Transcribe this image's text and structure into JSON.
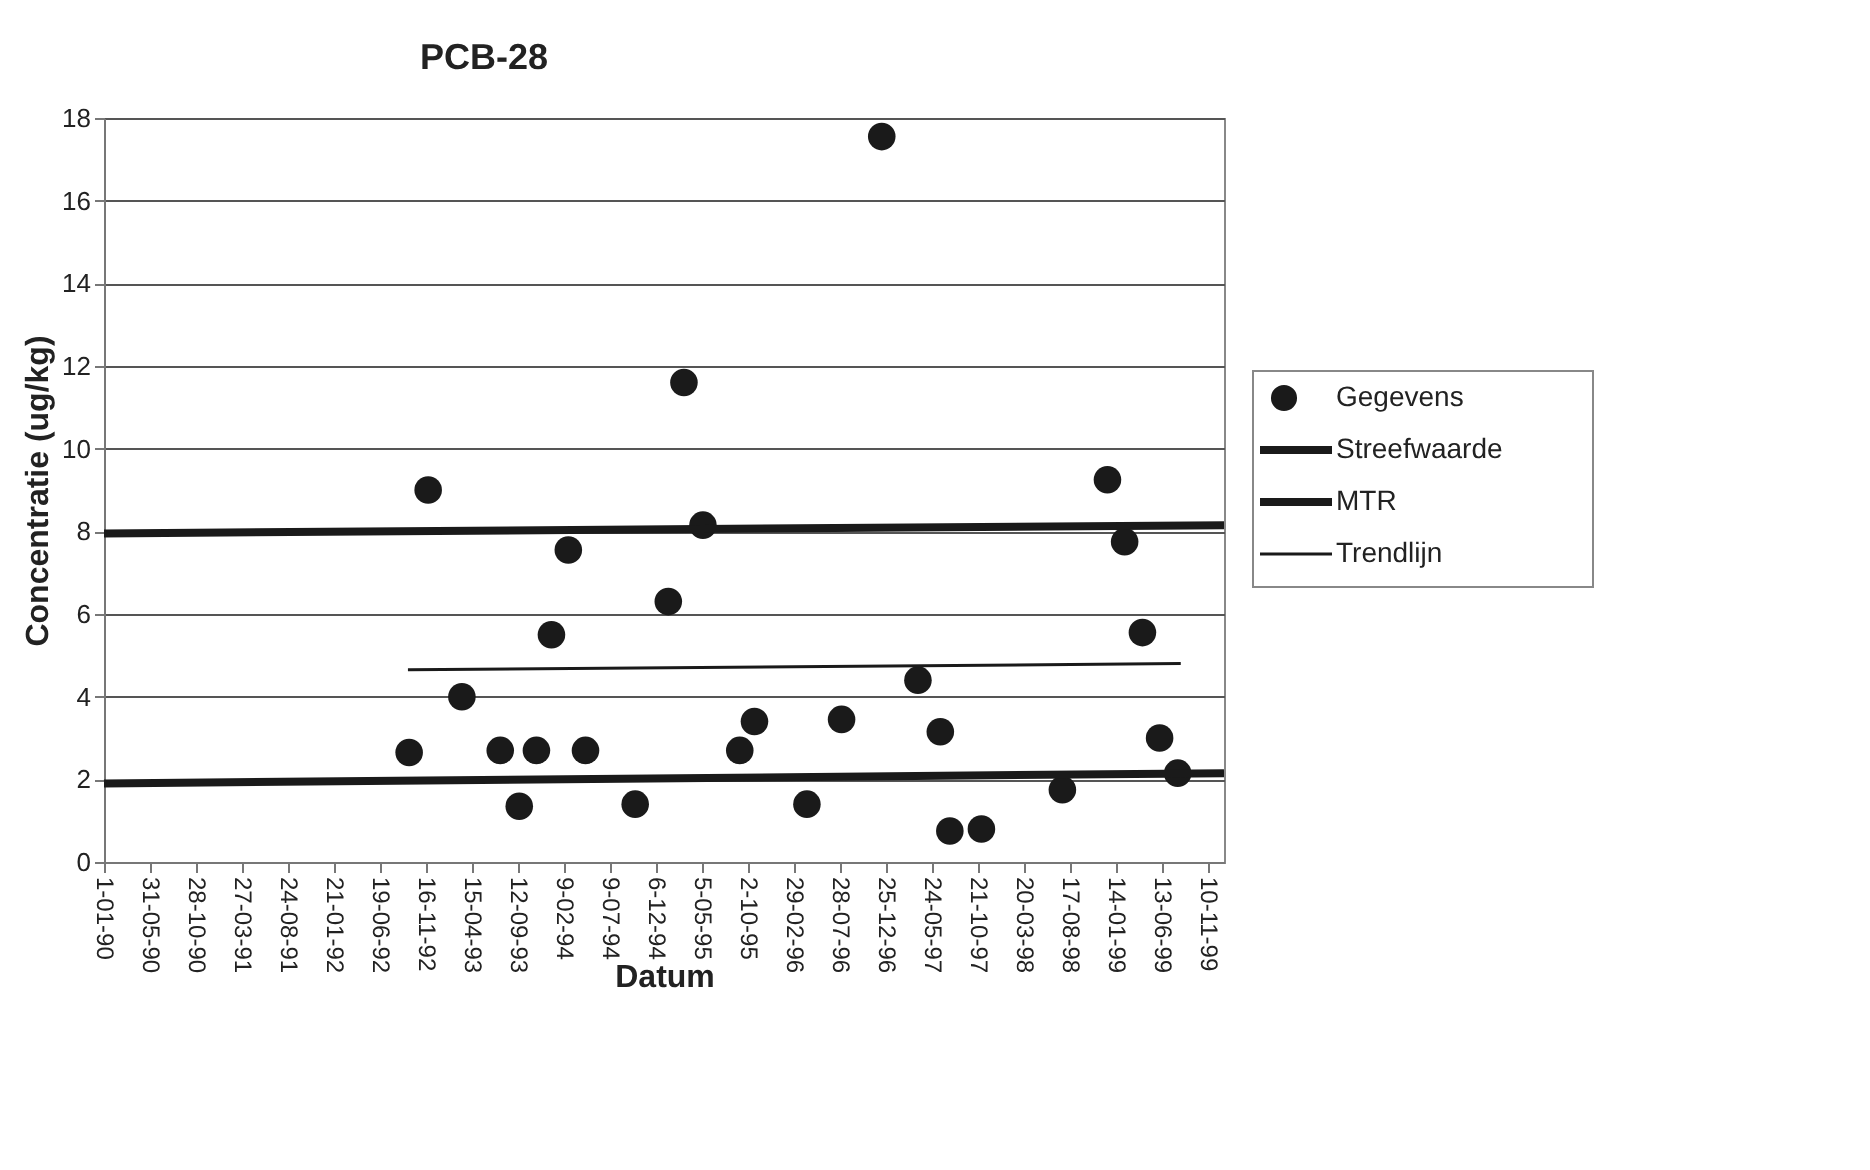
{
  "chart_data": {
    "type": "scatter",
    "title": "PCB-28",
    "xlabel": "Datum",
    "ylabel": "Concentratie (ug/kg)",
    "xlim": [
      "1990-01-01",
      "2000-01-01"
    ],
    "ylim": [
      0,
      18
    ],
    "yticks": [
      0,
      2,
      4,
      6,
      8,
      10,
      12,
      14,
      16,
      18
    ],
    "xticks": [
      {
        "value": "1990-01-01",
        "label": "1-01-90"
      },
      {
        "value": "1990-05-31",
        "label": "31-05-90"
      },
      {
        "value": "1990-10-28",
        "label": "28-10-90"
      },
      {
        "value": "1991-03-27",
        "label": "27-03-91"
      },
      {
        "value": "1991-08-24",
        "label": "24-08-91"
      },
      {
        "value": "1992-01-21",
        "label": "21-01-92"
      },
      {
        "value": "1992-06-19",
        "label": "19-06-92"
      },
      {
        "value": "1992-11-16",
        "label": "16-11-92"
      },
      {
        "value": "1993-04-15",
        "label": "15-04-93"
      },
      {
        "value": "1993-09-12",
        "label": "12-09-93"
      },
      {
        "value": "1994-02-09",
        "label": "9-02-94"
      },
      {
        "value": "1994-07-09",
        "label": "9-07-94"
      },
      {
        "value": "1994-12-06",
        "label": "6-12-94"
      },
      {
        "value": "1995-05-05",
        "label": "5-05-95"
      },
      {
        "value": "1995-10-02",
        "label": "2-10-95"
      },
      {
        "value": "1996-02-29",
        "label": "29-02-96"
      },
      {
        "value": "1996-07-28",
        "label": "28-07-96"
      },
      {
        "value": "1996-12-25",
        "label": "25-12-96"
      },
      {
        "value": "1997-05-24",
        "label": "24-05-97"
      },
      {
        "value": "1997-10-21",
        "label": "21-10-97"
      },
      {
        "value": "1998-03-20",
        "label": "20-03-98"
      },
      {
        "value": "1998-08-17",
        "label": "17-08-98"
      },
      {
        "value": "1999-01-14",
        "label": "14-01-99"
      },
      {
        "value": "1999-06-13",
        "label": "13-06-99"
      },
      {
        "value": "1999-11-10",
        "label": "10-11-99"
      }
    ],
    "grid": "y",
    "legend": "right",
    "series": [
      {
        "name": "Gegevens",
        "type": "scatter",
        "marker": "circle",
        "color": "#1a1a1a",
        "x": [
          "1992-09-22",
          "1992-11-23",
          "1993-03-13",
          "1993-07-16",
          "1993-09-16",
          "1993-11-11",
          "1993-12-30",
          "1994-02-23",
          "1994-04-20",
          "1994-09-29",
          "1995-01-15",
          "1995-03-07",
          "1995-05-08",
          "1995-09-05",
          "1995-10-23",
          "1996-04-11",
          "1996-08-02",
          "1996-12-11",
          "1997-04-08",
          "1997-06-20",
          "1997-07-21",
          "1997-11-01",
          "1998-07-23",
          "1998-12-17",
          "1999-02-11",
          "1999-04-10",
          "1999-06-05",
          "1999-08-03"
        ],
        "values": [
          2.65,
          9.0,
          4.0,
          2.7,
          1.35,
          2.7,
          5.5,
          7.55,
          2.7,
          1.4,
          6.3,
          11.6,
          8.15,
          2.7,
          3.4,
          1.4,
          3.45,
          17.55,
          4.4,
          3.15,
          0.75,
          0.8,
          1.75,
          9.25,
          7.75,
          5.55,
          3.0,
          2.15
        ]
      },
      {
        "name": "Streefwaarde",
        "type": "line",
        "marker": "none",
        "color": "#1a1a1a",
        "x": [
          "1990-01-01",
          "2000-01-01"
        ],
        "values": [
          1.9,
          2.15
        ]
      },
      {
        "name": "MTR",
        "type": "line",
        "marker": "none",
        "color": "#1a1a1a",
        "x": [
          "1990-01-01",
          "2000-01-01"
        ],
        "values": [
          7.95,
          8.15
        ]
      },
      {
        "name": "Trendlijn",
        "type": "line",
        "marker": "none",
        "color": "#1a1a1a",
        "x": [
          "1992-09-18",
          "1999-08-13"
        ],
        "values": [
          4.65,
          4.8
        ]
      }
    ]
  }
}
